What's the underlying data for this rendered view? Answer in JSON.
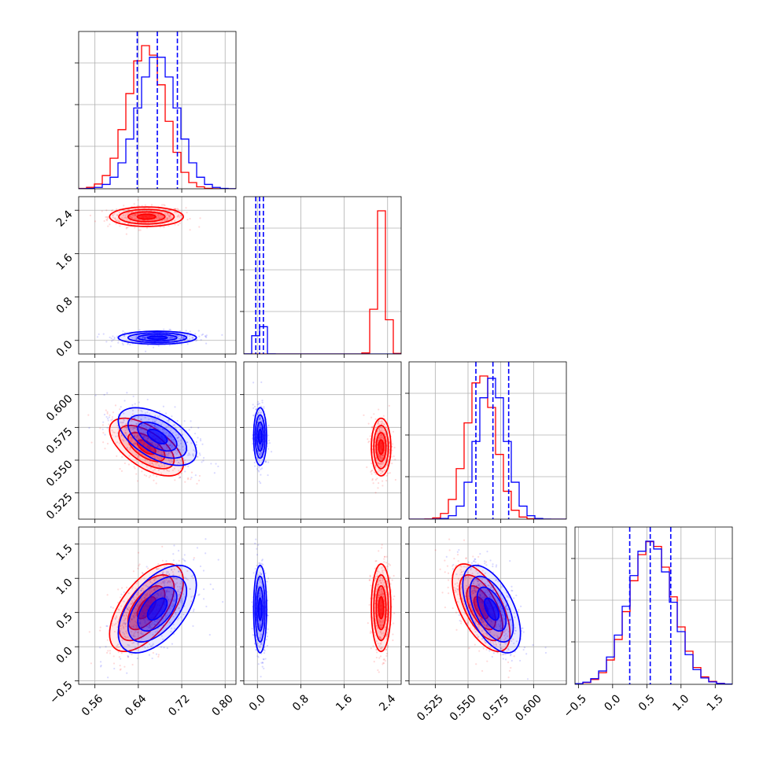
{
  "chart_data": {
    "type": "corner",
    "title": "",
    "series": [
      {
        "color": "#0000ff",
        "params": [
          {
            "mean": 0.675,
            "sd": 0.036,
            "q16": 0.638,
            "q50": 0.675,
            "q84": 0.712,
            "hist_peak": 2.2
          },
          {
            "mean": 0.05,
            "sd": 0.06,
            "q16": -0.03,
            "q50": 0.04,
            "q84": 0.11,
            "hist_peak": 0.8
          },
          {
            "mean": 0.568,
            "sd": 0.011,
            "q16": 0.556,
            "q50": 0.569,
            "q84": 0.581,
            "hist_peak": 1.5
          },
          {
            "mean": 0.55,
            "sd": 0.32,
            "q16": 0.25,
            "q50": 0.55,
            "q84": 0.85,
            "hist_peak": 1.6
          }
        ],
        "correlations": [
          [
            0,
            1,
            0.0
          ],
          [
            0,
            2,
            -0.55
          ],
          [
            1,
            2,
            0.0
          ],
          [
            0,
            3,
            0.55
          ],
          [
            1,
            3,
            0.0
          ],
          [
            2,
            3,
            -0.55
          ]
        ]
      },
      {
        "color": "#ff0000",
        "params": [
          {
            "mean": 0.655,
            "sd": 0.034,
            "hist_peak": 2.35
          },
          {
            "mean": 2.28,
            "sd": 0.09,
            "hist_peak": 2.45
          },
          {
            "mean": 0.56,
            "sd": 0.011,
            "hist_peak": 1.55
          },
          {
            "mean": 0.57,
            "sd": 0.32,
            "hist_peak": 1.6
          }
        ],
        "correlations": [
          [
            0,
            1,
            0.0
          ],
          [
            0,
            2,
            -0.6
          ],
          [
            1,
            2,
            0.0
          ],
          [
            0,
            3,
            0.6
          ],
          [
            1,
            3,
            0.0
          ],
          [
            2,
            3,
            -0.6
          ]
        ]
      }
    ],
    "axes": [
      {
        "range": [
          0.53,
          0.82
        ],
        "ticks": [
          0.56,
          0.64,
          0.72,
          0.8
        ],
        "tick_labels": [
          "0.56",
          "0.64",
          "0.72",
          "0.80"
        ]
      },
      {
        "range": [
          -0.25,
          2.65
        ],
        "ticks": [
          0.0,
          0.8,
          1.6,
          2.4
        ],
        "tick_labels": [
          "0.0",
          "0.8",
          "1.6",
          "2.4"
        ]
      },
      {
        "range": [
          0.505,
          0.625
        ],
        "ticks": [
          0.525,
          0.55,
          0.575,
          0.6
        ],
        "tick_labels": [
          "0.525",
          "0.550",
          "0.575",
          "0.600"
        ]
      },
      {
        "range": [
          -0.55,
          1.75
        ],
        "ticks": [
          -0.5,
          0.0,
          0.5,
          1.0,
          1.5
        ],
        "tick_labels": [
          "−0.5",
          "0.0",
          "0.5",
          "1.0",
          "1.5"
        ]
      }
    ],
    "grid": true,
    "legend": "none",
    "xlabel": "",
    "ylabel": ""
  }
}
